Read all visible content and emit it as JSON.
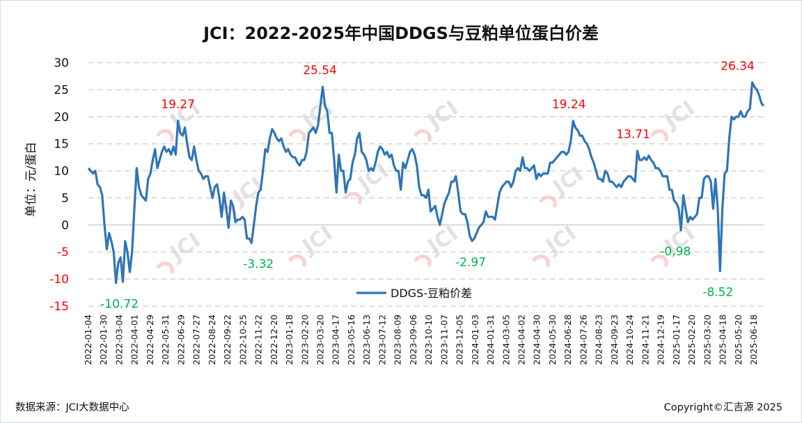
{
  "chart_data": {
    "type": "line",
    "title": "JCI：2022-2025年中国DDGS与豆粕单位蛋白价差",
    "ylabel": "单位：元/蛋白",
    "xlabel": "",
    "ylim": [
      -15,
      30
    ],
    "yticks": [
      30,
      25,
      20,
      15,
      10,
      5,
      0,
      -5,
      -10,
      -15
    ],
    "grid": true,
    "legend_position": "bottom-center",
    "x_tick_labels": [
      "2022-01-04",
      "2022-01-30",
      "2022-03-04",
      "2022-04-01",
      "2022-04-29",
      "2022-05-31",
      "2022-06-29",
      "2022-07-27",
      "2022-08-24",
      "2022-09-22",
      "2022-10-25",
      "2022-11-22",
      "2022-12-20",
      "2023-01-18",
      "2023-02-20",
      "2023-03-20",
      "2023-04-17",
      "2023-05-16",
      "2023-06-13",
      "2023-07-12",
      "2023-08-09",
      "2023-09-06",
      "2023-10-10",
      "2023-11-07",
      "2023-12-05",
      "2024-01-03",
      "2024-01-31",
      "2024-03-05",
      "2024-04-02",
      "2024-04-30",
      "2024-05-30",
      "2024-06-28",
      "2024-07-26",
      "2024-08-23",
      "2024-09-23",
      "2024-10-24",
      "2024-11-21",
      "2024-12-19",
      "2025-01-17",
      "2025-02-20",
      "2025-03-20",
      "2025-04-18",
      "2025-05-20",
      "2025-06-18"
    ],
    "series": [
      {
        "name": "DDGS-豆粕价差",
        "color": "#2e75b6",
        "values": [
          10.5,
          10,
          9.5,
          10,
          7.5,
          7,
          5.5,
          0,
          -4.5,
          -1.5,
          -3,
          -5,
          -10.72,
          -7,
          -6,
          -10.5,
          -3,
          -5,
          -8.7,
          -5,
          3,
          10.5,
          7,
          5.5,
          5,
          4.5,
          8.5,
          9.5,
          12,
          14,
          10.5,
          12,
          13.5,
          14.5,
          13.5,
          14,
          13,
          14.5,
          13,
          19.27,
          17,
          16.5,
          18,
          15,
          12.5,
          12,
          14.5,
          12,
          10,
          9.5,
          8.5,
          9,
          9,
          7,
          5,
          7,
          7.5,
          5,
          1.5,
          6,
          3,
          -0.5,
          4.5,
          3.5,
          0.5,
          1,
          1,
          1.5,
          1,
          -2.5,
          -2.5,
          -3.32,
          0,
          3.5,
          6,
          6.5,
          10,
          14,
          13.5,
          16,
          17.7,
          17,
          16,
          15.5,
          16,
          14.5,
          13.5,
          14,
          13,
          12.5,
          12.5,
          11.5,
          11,
          12,
          12,
          13.5,
          17,
          17.5,
          18,
          17,
          18.5,
          22,
          25.54,
          22,
          21,
          17,
          17,
          12,
          6,
          13,
          10,
          10,
          6,
          8,
          8.5,
          11.5,
          13,
          16,
          17,
          13.5,
          13,
          12,
          10,
          10.5,
          10,
          11.5,
          13.5,
          14.5,
          14,
          13,
          13.5,
          12.5,
          13,
          11,
          10,
          10,
          6.5,
          11.5,
          10.5,
          12,
          13.5,
          14,
          13,
          11,
          7,
          5.5,
          5.5,
          5,
          6.5,
          2.5,
          3,
          3.5,
          1.5,
          0,
          2,
          4,
          5,
          6,
          8,
          8,
          9,
          6,
          2.5,
          2,
          2,
          0.5,
          -2,
          -2.97,
          -2.5,
          -1.5,
          -0.5,
          0,
          0.5,
          2.5,
          1.5,
          1.5,
          1.5,
          1,
          3.5,
          6,
          7,
          7.5,
          8,
          8,
          7,
          8,
          10,
          10.5,
          10,
          12.5,
          10.5,
          10.5,
          10,
          10.5,
          11,
          8.5,
          9.5,
          9,
          9.5,
          9.5,
          9.5,
          11.5,
          11.5,
          12,
          12.5,
          13,
          13.5,
          13.5,
          13,
          13.5,
          15.5,
          19.24,
          18,
          17.5,
          16.5,
          16.5,
          15.5,
          15,
          14,
          12.5,
          11.5,
          10,
          8.5,
          8.5,
          8,
          10,
          9.5,
          8,
          8,
          7.5,
          7,
          7.5,
          7,
          8,
          8.5,
          9,
          9,
          8.5,
          8,
          13.71,
          12,
          12,
          12.5,
          12,
          12.8,
          12,
          11.5,
          10.5,
          10.5,
          10,
          9,
          9,
          9,
          6.5,
          6.5,
          4.5,
          4,
          3,
          -0.98,
          5.5,
          3,
          0.5,
          1.5,
          1,
          1.5,
          2,
          5,
          5,
          8.5,
          9,
          9,
          8,
          3,
          8.5,
          3,
          -8.52,
          3,
          9.5,
          10,
          16,
          20,
          19.5,
          20,
          20,
          21,
          20,
          20,
          21,
          21.5,
          26.34,
          25.5,
          25,
          24,
          22.5,
          22
        ]
      }
    ],
    "annotations": [
      {
        "text": "19.27",
        "kind": "max",
        "color": "#ff0000"
      },
      {
        "text": "-10.72",
        "kind": "min",
        "color": "#00b050"
      },
      {
        "text": "-3.32",
        "kind": "min",
        "color": "#00b050"
      },
      {
        "text": "25.54",
        "kind": "max",
        "color": "#ff0000"
      },
      {
        "text": "-2.97",
        "kind": "min",
        "color": "#00b050"
      },
      {
        "text": "19.24",
        "kind": "max",
        "color": "#ff0000"
      },
      {
        "text": "13.71",
        "kind": "max",
        "color": "#ff0000"
      },
      {
        "text": "-0.98",
        "kind": "min",
        "color": "#00b050"
      },
      {
        "text": "-8.52",
        "kind": "min",
        "color": "#00b050"
      },
      {
        "text": "26.34",
        "kind": "max",
        "color": "#ff0000"
      }
    ],
    "negative_tick_color": "#ff0000"
  },
  "footer": {
    "source": "数据来源：JCI大数据中心",
    "copyright": "Copyright©汇吉源 2025"
  },
  "watermark": "JCI"
}
